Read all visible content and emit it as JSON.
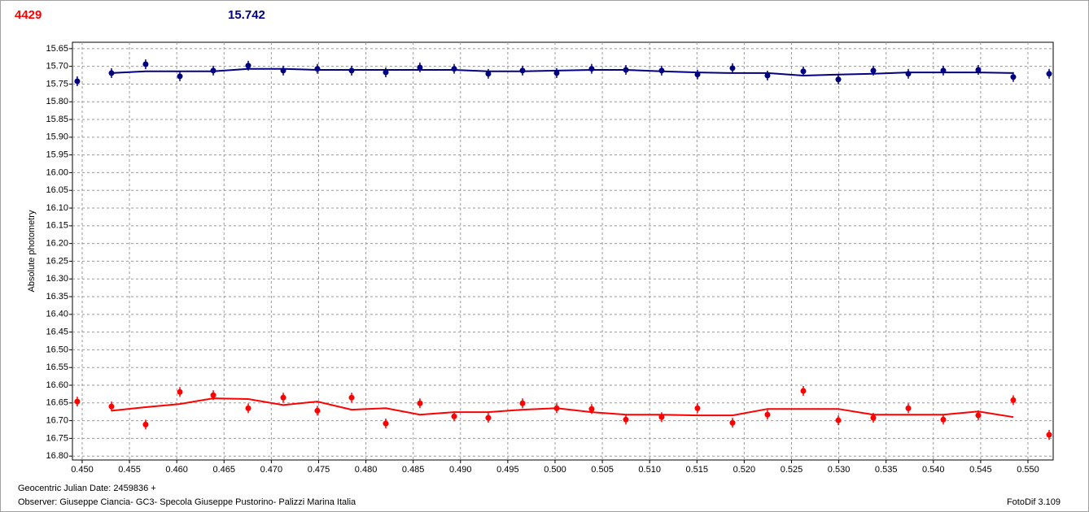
{
  "chart_data": {
    "type": "scatter",
    "title": "4429",
    "title_color": "#ff0000",
    "subtitle": "15.742",
    "subtitle_color": "#000080",
    "y_label": "Absolute photometry",
    "x_label": "Geocentric Julian Date: 2459836 +",
    "observer": "Observer: Giuseppe Ciancia- GC3- Specola Giuseppe Pustorino- Palizzi Marina Italia",
    "software": "FotoDif 3.109",
    "y_inverted": true,
    "grid": true,
    "xlim": [
      0.44897,
      0.55267
    ],
    "ylim": [
      15.632,
      16.811
    ],
    "xticks": [
      {
        "value": 0.45,
        "label": "0.450"
      },
      0.455,
      {
        "value": 0.46,
        "label": "0.460"
      },
      0.465,
      {
        "value": 0.47,
        "label": "0.470"
      },
      0.475,
      {
        "value": 0.48,
        "label": "0.480"
      },
      0.485,
      {
        "value": 0.49,
        "label": "0.490"
      },
      0.495,
      {
        "value": 0.5,
        "label": "0.500"
      },
      0.505,
      {
        "value": 0.51,
        "label": "0.510"
      },
      0.515,
      {
        "value": 0.52,
        "label": "0.520"
      },
      0.525,
      {
        "value": 0.53,
        "label": "0.530"
      },
      0.535,
      {
        "value": 0.54,
        "label": "0.540"
      },
      0.545,
      {
        "value": 0.55,
        "label": "0.550"
      }
    ],
    "yticks": [
      15.65,
      {
        "value": 15.7,
        "label": "15.70"
      },
      15.75,
      {
        "value": 15.8,
        "label": "15.80"
      },
      15.85,
      {
        "value": 15.9,
        "label": "15.90"
      },
      15.95,
      {
        "value": 16,
        "label": "16.00"
      },
      16.05,
      {
        "value": 16.1,
        "label": "16.10"
      },
      16.15,
      {
        "value": 16.2,
        "label": "16.20"
      },
      16.25,
      {
        "value": 16.3,
        "label": "16.30"
      },
      16.35,
      {
        "value": 16.4,
        "label": "16.40"
      },
      16.45,
      {
        "value": 16.5,
        "label": "16.50"
      },
      16.55,
      {
        "value": 16.6,
        "label": "16.60"
      },
      16.65,
      {
        "value": 16.7,
        "label": "16.70"
      },
      16.75,
      {
        "value": 16.8,
        "label": "16.80"
      }
    ],
    "x": [
      0.44948,
      0.4531,
      0.45671,
      0.46033,
      0.46386,
      0.46756,
      0.47126,
      0.47487,
      0.47849,
      0.4821,
      0.48571,
      0.48933,
      0.49294,
      0.49656,
      0.50017,
      0.50387,
      0.50749,
      0.51127,
      0.51506,
      0.51876,
      0.52246,
      0.52625,
      0.52995,
      0.53365,
      0.53735,
      0.54105,
      0.54475,
      0.54845,
      0.55224
    ],
    "series": [
      {
        "mark": "point",
        "color": "#000080",
        "values": [
          15.742,
          15.719,
          15.694,
          15.728,
          15.712,
          15.698,
          15.712,
          15.707,
          15.712,
          15.717,
          15.703,
          15.707,
          15.721,
          15.712,
          15.719,
          15.707,
          15.71,
          15.712,
          15.723,
          15.705,
          15.726,
          15.714,
          15.737,
          15.712,
          15.721,
          15.712,
          15.71,
          15.73,
          15.721
        ]
      },
      {
        "mark": "line",
        "color": "#000080",
        "values": [
          null,
          15.719,
          15.714,
          15.714,
          15.714,
          15.707,
          15.707,
          15.71,
          15.71,
          15.71,
          15.71,
          15.71,
          15.714,
          15.714,
          15.712,
          15.71,
          15.71,
          15.714,
          15.717,
          15.719,
          15.719,
          15.726,
          15.723,
          15.721,
          15.717,
          15.717,
          15.717,
          15.719,
          null
        ]
      },
      {
        "mark": "point",
        "color": "#ff0000",
        "values": [
          16.646,
          16.66,
          16.711,
          16.619,
          16.628,
          16.665,
          16.635,
          16.672,
          16.635,
          16.708,
          16.651,
          16.688,
          16.692,
          16.651,
          16.665,
          16.667,
          16.697,
          16.69,
          16.665,
          16.706,
          16.683,
          16.616,
          16.699,
          16.692,
          16.665,
          16.697,
          16.685,
          16.642,
          16.74
        ]
      },
      {
        "mark": "line",
        "color": "#ff0000",
        "values": [
          null,
          16.672,
          16.662,
          16.653,
          16.637,
          16.639,
          16.656,
          16.646,
          16.669,
          16.665,
          16.683,
          16.676,
          16.676,
          16.669,
          16.665,
          16.676,
          16.683,
          16.683,
          16.685,
          16.685,
          16.667,
          16.667,
          16.667,
          16.683,
          16.683,
          16.683,
          16.674,
          16.69,
          null
        ]
      }
    ]
  }
}
